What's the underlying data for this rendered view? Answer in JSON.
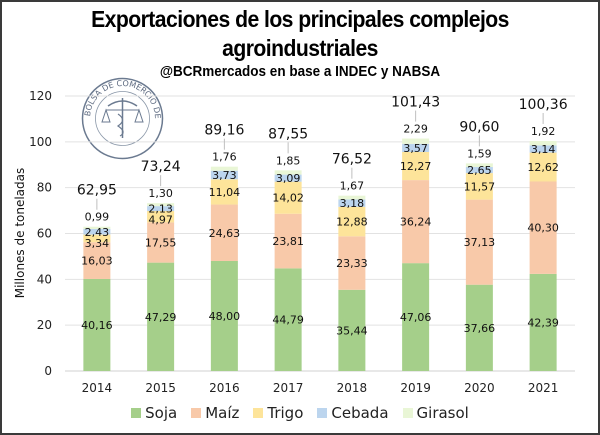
{
  "header": {
    "title_line1": "Exportaciones de los principales complejos",
    "title_line2": "agroindustriales",
    "subtitle": "@BCRmercados en base a INDEC y NABSA",
    "logo": "bolsa-de-comercio-de-rosario-seal",
    "logo_text": "BOLSA DE COMERCIO DE ROSARIO"
  },
  "chart_data": {
    "type": "bar",
    "stacked": true,
    "title": "Exportaciones de los principales complejos agroindustriales",
    "subtitle": "@BCRmercados en base a INDEC y NABSA",
    "xlabel": "",
    "ylabel": "Millones de toneladas",
    "ylim": [
      0,
      120
    ],
    "yticks": [
      0,
      20,
      40,
      60,
      80,
      100,
      120
    ],
    "grid": true,
    "legend_position": "bottom",
    "categories": [
      "2014",
      "2015",
      "2016",
      "2017",
      "2018",
      "2019",
      "2020",
      "2021"
    ],
    "series": [
      {
        "name": "Soja",
        "color": "#a5cf8a",
        "values": [
          40.16,
          47.29,
          48.0,
          44.79,
          35.44,
          47.06,
          37.66,
          42.39
        ],
        "labels": [
          "40,16",
          "47,29",
          "48,00",
          "44,79",
          "35,44",
          "47,06",
          "37,66",
          "42,39"
        ]
      },
      {
        "name": "Maíz",
        "color": "#f8c9a9",
        "values": [
          16.03,
          17.55,
          24.63,
          23.81,
          23.33,
          36.24,
          37.13,
          40.3
        ],
        "labels": [
          "16,03",
          "17,55",
          "24,63",
          "23,81",
          "23,33",
          "36,24",
          "37,13",
          "40,30"
        ]
      },
      {
        "name": "Trigo",
        "color": "#fde49a",
        "values": [
          3.34,
          4.97,
          11.04,
          14.02,
          12.88,
          12.27,
          11.57,
          12.62
        ],
        "labels": [
          "3,34",
          "4,97",
          "11,04",
          "14,02",
          "12,88",
          "12,27",
          "11,57",
          "12,62"
        ]
      },
      {
        "name": "Cebada",
        "color": "#bcd5ee",
        "values": [
          2.43,
          2.13,
          3.73,
          3.09,
          3.18,
          3.57,
          2.65,
          3.14
        ],
        "labels": [
          "2,43",
          "2,13",
          "3,73",
          "3,09",
          "3,18",
          "3,57",
          "2,65",
          "3,14"
        ]
      },
      {
        "name": "Girasol",
        "color": "#e9f6d6",
        "values": [
          0.99,
          1.3,
          1.76,
          1.85,
          1.67,
          2.29,
          1.59,
          1.92
        ],
        "labels": [
          "0,99",
          "1,30",
          "1,76",
          "1,85",
          "1,67",
          "2,29",
          "1,59",
          "1,92"
        ]
      }
    ],
    "totals": [
      62.95,
      73.24,
      89.16,
      87.55,
      76.52,
      101.43,
      90.6,
      100.36
    ],
    "total_labels": [
      "62,95",
      "73,24",
      "89,16",
      "87,55",
      "76,52",
      "101,43",
      "90,60",
      "100,36"
    ]
  },
  "legend": [
    {
      "label": "Soja",
      "color": "#a5cf8a"
    },
    {
      "label": "Maíz",
      "color": "#f8c9a9"
    },
    {
      "label": "Trigo",
      "color": "#fde49a"
    },
    {
      "label": "Cebada",
      "color": "#bcd5ee"
    },
    {
      "label": "Girasol",
      "color": "#e9f6d6"
    }
  ]
}
